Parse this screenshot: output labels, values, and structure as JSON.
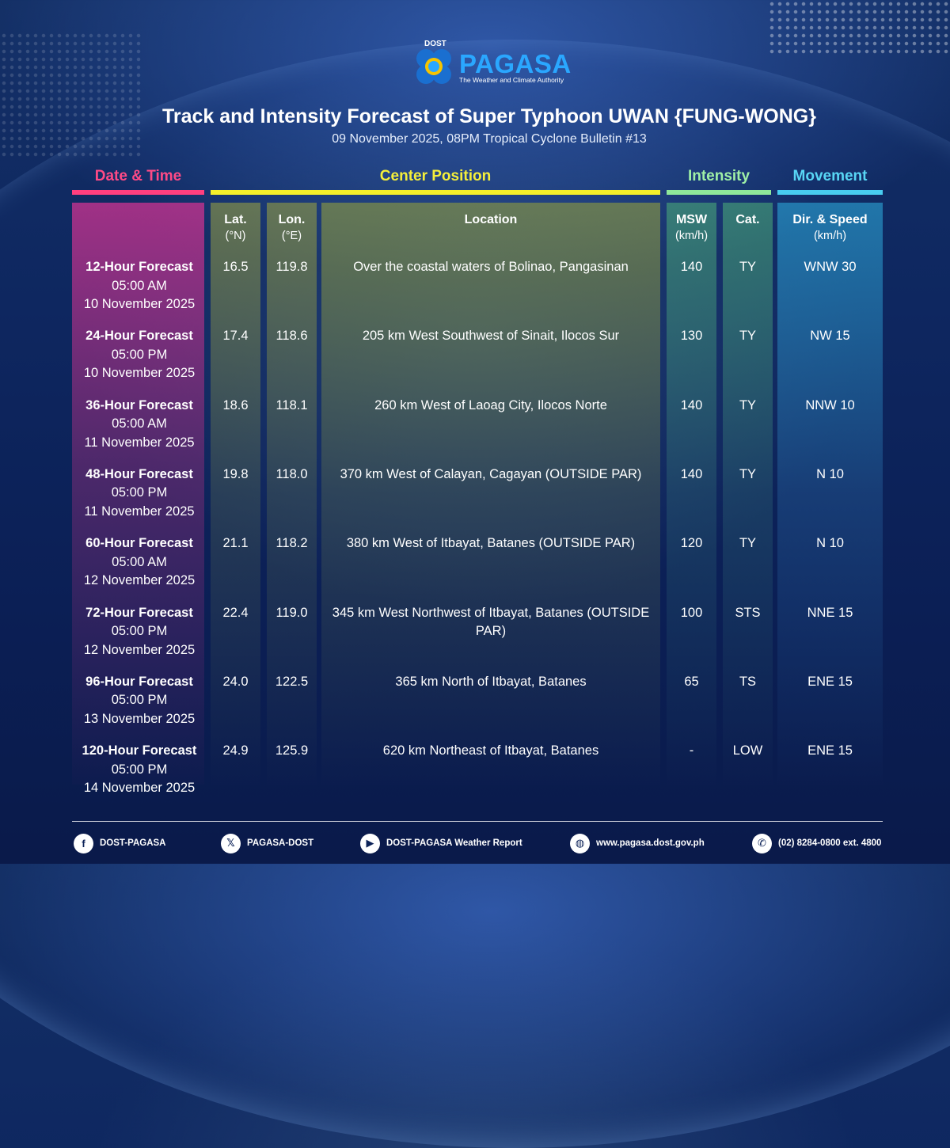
{
  "logo": {
    "dost": "DOST",
    "name": "PAGASA",
    "tagline": "The Weather and Climate Authority"
  },
  "title": "Track and Intensity Forecast of Super Typhoon UWAN {FUNG-WONG}",
  "subtitle": "09 November 2025, 08PM Tropical Cyclone Bulletin #13",
  "groups": {
    "date_time": "Date & Time",
    "center_position": "Center Position",
    "intensity": "Intensity",
    "movement": "Movement"
  },
  "columns": {
    "lat": {
      "name": "Lat.",
      "unit": "(°N)"
    },
    "lon": {
      "name": "Lon.",
      "unit": "(°E)"
    },
    "location": {
      "name": "Location"
    },
    "msw": {
      "name": "MSW",
      "unit": "(km/h)"
    },
    "cat": {
      "name": "Cat."
    },
    "movement": {
      "name": "Dir. & Speed",
      "unit": "(km/h)"
    }
  },
  "rows": [
    {
      "forecast": "12-Hour Forecast",
      "time": "05:00 AM",
      "date": "10 November 2025",
      "lat": "16.5",
      "lon": "119.8",
      "location": "Over the coastal waters of Bolinao, Pangasinan",
      "msw": "140",
      "cat": "TY",
      "movement": "WNW 30"
    },
    {
      "forecast": "24-Hour Forecast",
      "time": "05:00 PM",
      "date": "10 November 2025",
      "lat": "17.4",
      "lon": "118.6",
      "location": "205 km West Southwest of Sinait, Ilocos Sur",
      "msw": "130",
      "cat": "TY",
      "movement": "NW 15"
    },
    {
      "forecast": "36-Hour Forecast",
      "time": "05:00 AM",
      "date": "11 November 2025",
      "lat": "18.6",
      "lon": "118.1",
      "location": "260 km West of Laoag City, Ilocos Norte",
      "msw": "140",
      "cat": "TY",
      "movement": "NNW 10"
    },
    {
      "forecast": "48-Hour Forecast",
      "time": "05:00 PM",
      "date": "11 November 2025",
      "lat": "19.8",
      "lon": "118.0",
      "location": "370 km West of Calayan, Cagayan (OUTSIDE PAR)",
      "msw": "140",
      "cat": "TY",
      "movement": "N 10"
    },
    {
      "forecast": "60-Hour Forecast",
      "time": "05:00 AM",
      "date": "12 November 2025",
      "lat": "21.1",
      "lon": "118.2",
      "location": "380 km West of Itbayat, Batanes (OUTSIDE PAR)",
      "msw": "120",
      "cat": "TY",
      "movement": "N 10"
    },
    {
      "forecast": "72-Hour Forecast",
      "time": "05:00 PM",
      "date": "12 November 2025",
      "lat": "22.4",
      "lon": "119.0",
      "location": "345 km West Northwest of Itbayat, Batanes (OUTSIDE PAR)",
      "msw": "100",
      "cat": "STS",
      "movement": "NNE 15"
    },
    {
      "forecast": "96-Hour Forecast",
      "time": "05:00 PM",
      "date": "13 November 2025",
      "lat": "24.0",
      "lon": "122.5",
      "location": "365 km North of Itbayat, Batanes",
      "msw": "65",
      "cat": "TS",
      "movement": "ENE 15"
    },
    {
      "forecast": "120-Hour Forecast",
      "time": "05:00 PM",
      "date": "14 November 2025",
      "lat": "24.9",
      "lon": "125.9",
      "location": "620 km Northeast of Itbayat, Batanes",
      "msw": "-",
      "cat": "LOW",
      "movement": "ENE 15"
    }
  ],
  "footer": [
    {
      "icon": "facebook-icon",
      "label": "DOST-PAGASA"
    },
    {
      "icon": "x-icon",
      "label": "PAGASA-DOST"
    },
    {
      "icon": "youtube-icon",
      "label": "DOST-PAGASA Weather Report"
    },
    {
      "icon": "globe-icon",
      "label": "www.pagasa.dost.gov.ph"
    },
    {
      "icon": "phone-icon",
      "label": "(02) 8284-0800 ext. 4800"
    }
  ]
}
